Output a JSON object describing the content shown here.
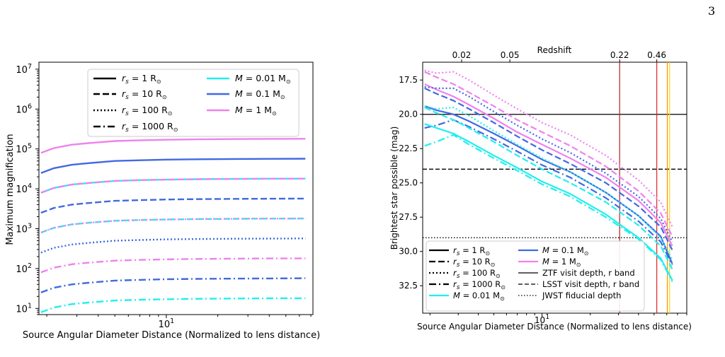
{
  "page": {
    "page_number": "3"
  },
  "chart_data": [
    {
      "type": "line",
      "xlabel": "Source Angular Diameter Distance (Normalized to lens distance)",
      "ylabel": "Maximum magnification",
      "xscale": "log",
      "yscale": "log",
      "xlim": [
        1.8,
        72
      ],
      "ylim": [
        7,
        15000000
      ],
      "x_tick_labels": [
        {
          "value": 10,
          "base": "10",
          "exp": "1"
        }
      ],
      "y_tick_labels": [
        {
          "value": 10,
          "base": "10",
          "exp": "1"
        },
        {
          "value": 100,
          "base": "10",
          "exp": "2"
        },
        {
          "value": 1000,
          "base": "10",
          "exp": "3"
        },
        {
          "value": 10000,
          "base": "10",
          "exp": "4"
        },
        {
          "value": 100000,
          "base": "10",
          "exp": "5"
        },
        {
          "value": 1000000,
          "base": "10",
          "exp": "6"
        },
        {
          "value": 10000000,
          "base": "10",
          "exp": "7"
        }
      ],
      "grid": false,
      "legend_position": "top-center",
      "legend": [
        {
          "main": "r",
          "sub": "s",
          "rest": " = 1 R",
          "suffix": "⊙",
          "style": "solid",
          "color": "#000000"
        },
        {
          "main": "r",
          "sub": "s",
          "rest": " = 10 R",
          "suffix": "⊙",
          "style": "dashed",
          "color": "#000000"
        },
        {
          "main": "r",
          "sub": "s",
          "rest": " = 100 R",
          "suffix": "⊙",
          "style": "dotted",
          "color": "#000000"
        },
        {
          "main": "r",
          "sub": "s",
          "rest": " = 1000 R",
          "suffix": "⊙",
          "style": "dashdot",
          "color": "#000000"
        },
        {
          "main": "M",
          "sub": "",
          "rest": " = 0.01 M",
          "suffix": "⊙",
          "style": "solid",
          "color": "#22eeee"
        },
        {
          "main": "M",
          "sub": "",
          "rest": " = 0.1 M",
          "suffix": "⊙",
          "style": "solid",
          "color": "#4169e1"
        },
        {
          "main": "M",
          "sub": "",
          "rest": " = 1 M",
          "suffix": "⊙",
          "style": "solid",
          "color": "#ee82ee"
        }
      ],
      "x": [
        1.85,
        2.2,
        2.8,
        3.5,
        5,
        7,
        10,
        15,
        25,
        40,
        65
      ],
      "series": [
        {
          "mass": "1",
          "rs": "1",
          "style": "solid",
          "color": "#ee82ee",
          "values": [
            80000,
            105000,
            128000,
            140000,
            158000,
            165000,
            170000,
            174000,
            177000,
            179000,
            180000
          ]
        },
        {
          "mass": "0.1",
          "rs": "1",
          "style": "solid",
          "color": "#4169e1",
          "values": [
            25000,
            33000,
            40000,
            44000,
            50000,
            52000,
            54000,
            55000,
            56000,
            56500,
            57000
          ]
        },
        {
          "mass": "0.01",
          "rs": "1",
          "style": "solid",
          "color": "#22eeee",
          "values": [
            8000,
            10500,
            12800,
            14000,
            15800,
            16500,
            17000,
            17400,
            17700,
            17900,
            18000
          ]
        },
        {
          "mass": "1",
          "rs": "10",
          "style": "dashed",
          "color": "#ee82ee",
          "values": [
            8000,
            10500,
            12800,
            14000,
            15800,
            16500,
            17000,
            17400,
            17700,
            17900,
            18000
          ]
        },
        {
          "mass": "0.1",
          "rs": "10",
          "style": "dashed",
          "color": "#4169e1",
          "values": [
            2500,
            3300,
            4000,
            4400,
            5000,
            5200,
            5400,
            5500,
            5600,
            5650,
            5700
          ]
        },
        {
          "mass": "0.01",
          "rs": "10",
          "style": "dashed",
          "color": "#22eeee",
          "values": [
            800,
            1050,
            1280,
            1400,
            1580,
            1650,
            1700,
            1740,
            1770,
            1790,
            1800
          ]
        },
        {
          "mass": "1",
          "rs": "100",
          "style": "dotted",
          "color": "#ee82ee",
          "values": [
            800,
            1050,
            1280,
            1400,
            1580,
            1650,
            1700,
            1740,
            1770,
            1790,
            1800
          ]
        },
        {
          "mass": "0.1",
          "rs": "100",
          "style": "dotted",
          "color": "#4169e1",
          "values": [
            250,
            330,
            400,
            440,
            500,
            520,
            540,
            550,
            560,
            565,
            570
          ]
        },
        {
          "mass": "1",
          "rs": "1000",
          "style": "dashdot",
          "color": "#ee82ee",
          "values": [
            80,
            105,
            128,
            140,
            158,
            165,
            170,
            174,
            177,
            179,
            180
          ]
        },
        {
          "mass": "0.1",
          "rs": "1000",
          "style": "dashdot",
          "color": "#4169e1",
          "values": [
            25,
            33,
            40,
            44,
            50,
            52,
            54,
            55,
            56,
            56.5,
            57
          ]
        },
        {
          "mass": "0.01",
          "rs": "1000",
          "style": "dashdot",
          "color": "#22eeee",
          "values": [
            8,
            10.5,
            12.8,
            14,
            15.8,
            16.5,
            17,
            17.4,
            17.7,
            17.9,
            18
          ]
        }
      ]
    },
    {
      "type": "line",
      "xlabel": "Source Angular Diameter Distance (Normalized to lens distance)",
      "ylabel": "Brightest star possible (mag)",
      "top_xlabel": "Redshift",
      "xscale": "log",
      "y_inverted": true,
      "xlim": [
        1.8,
        80
      ],
      "ylim": [
        34.5,
        16.2
      ],
      "x_tick_labels": [
        {
          "value": 10,
          "base": "10",
          "exp": "1"
        }
      ],
      "y_tick_labels": [
        {
          "value": 17.5,
          "text": "17.5"
        },
        {
          "value": 20.0,
          "text": "20.0"
        },
        {
          "value": 22.5,
          "text": "22.5"
        },
        {
          "value": 25.0,
          "text": "25.0"
        },
        {
          "value": 27.5,
          "text": "27.5"
        },
        {
          "value": 30.0,
          "text": "30.0"
        },
        {
          "value": 32.5,
          "text": "32.5"
        }
      ],
      "top_ticks": [
        {
          "text": "0.02",
          "x": 3.15
        },
        {
          "text": "0.05",
          "x": 6.3
        },
        {
          "text": "0.22",
          "x": 30.5
        },
        {
          "text": "0.46",
          "x": 52
        }
      ],
      "vertical_lines": [
        {
          "x": 30.5,
          "color": "#b22222"
        },
        {
          "x": 52,
          "color": "#dd2222"
        },
        {
          "x": 60.5,
          "color": "#ff8c00"
        },
        {
          "x": 62.5,
          "color": "#ffd700"
        }
      ],
      "reference_lines": [
        {
          "y": 20.0,
          "style": "solid",
          "label": "ZTF visit depth, r band"
        },
        {
          "y": 24.0,
          "style": "dashed",
          "label": "LSST visit depth, r band"
        },
        {
          "y": 29.0,
          "style": "dotted",
          "label": "JWST fiducial depth"
        }
      ],
      "grid": false,
      "legend_position": "bottom-left",
      "legend": [
        {
          "main": "r",
          "sub": "s",
          "rest": " = 1 R",
          "suffix": "⊙",
          "style": "solid",
          "color": "#000000",
          "thick": true
        },
        {
          "main": "r",
          "sub": "s",
          "rest": " = 10 R",
          "suffix": "⊙",
          "style": "dashed",
          "color": "#000000",
          "thick": true
        },
        {
          "main": "r",
          "sub": "s",
          "rest": " = 100 R",
          "suffix": "⊙",
          "style": "dotted",
          "color": "#000000",
          "thick": true
        },
        {
          "main": "r",
          "sub": "s",
          "rest": " = 1000 R",
          "suffix": "⊙",
          "style": "dashdot",
          "color": "#000000",
          "thick": true
        },
        {
          "main": "M",
          "sub": "",
          "rest": " = 0.01 M",
          "suffix": "⊙",
          "style": "solid",
          "color": "#22eeee",
          "thick": true
        },
        {
          "main": "M",
          "sub": "",
          "rest": " = 0.1 M",
          "suffix": "⊙",
          "style": "solid",
          "color": "#4169e1",
          "thick": true
        },
        {
          "main": "M",
          "sub": "",
          "rest": " = 1 M",
          "suffix": "⊙",
          "style": "solid",
          "color": "#ee82ee",
          "thick": true
        },
        {
          "text": "ZTF visit depth, r band",
          "style": "solid",
          "color": "#000000",
          "thick": false
        },
        {
          "text": "LSST visit depth, r band",
          "style": "dashed",
          "color": "#000000",
          "thick": false
        },
        {
          "text": "JWST fiducial depth",
          "style": "dotted",
          "color": "#000000",
          "thick": false
        }
      ],
      "x": [
        1.85,
        2.2,
        2.8,
        3.5,
        5,
        7,
        10,
        15,
        25,
        40,
        55,
        65
      ],
      "series": [
        {
          "mass": "1",
          "rs": "100",
          "style": "dotted",
          "color": "#ee82ee",
          "values": [
            16.8,
            17.0,
            16.9,
            17.5,
            18.6,
            19.6,
            20.6,
            21.5,
            23.0,
            24.8,
            26.4,
            28.2
          ]
        },
        {
          "mass": "1",
          "rs": "10",
          "style": "dashed",
          "color": "#ee82ee",
          "values": [
            16.9,
            17.3,
            17.8,
            18.4,
            19.4,
            20.4,
            21.3,
            22.3,
            23.8,
            25.6,
            27.2,
            28.9
          ]
        },
        {
          "mass": "1",
          "rs": "1",
          "style": "solid",
          "color": "#ee82ee",
          "values": [
            17.8,
            18.2,
            18.7,
            19.3,
            20.3,
            21.3,
            22.2,
            23.2,
            24.6,
            26.3,
            27.9,
            29.6
          ]
        },
        {
          "mass": "0.1",
          "rs": "100",
          "style": "dotted",
          "color": "#4169e1",
          "values": [
            18.0,
            18.1,
            18.1,
            18.7,
            19.8,
            20.8,
            21.8,
            22.8,
            24.3,
            26.0,
            27.6,
            29.3
          ]
        },
        {
          "mass": "0.1",
          "rs": "10",
          "style": "dashed",
          "color": "#4169e1",
          "values": [
            18.1,
            18.5,
            19.0,
            19.6,
            20.6,
            21.6,
            22.6,
            23.6,
            25.0,
            26.7,
            28.2,
            29.9
          ]
        },
        {
          "mass": "0.1",
          "rs": "1",
          "style": "solid",
          "color": "#4169e1",
          "values": [
            19.4,
            19.7,
            20.0,
            20.5,
            21.4,
            22.3,
            23.3,
            24.2,
            25.7,
            27.4,
            28.9,
            30.9
          ]
        },
        {
          "mass": "0.1",
          "rs": "1000",
          "style": "dashdot",
          "color": "#4169e1",
          "values": [
            21.0,
            20.8,
            20.4,
            20.9,
            21.8,
            22.7,
            23.7,
            24.6,
            26.1,
            27.8,
            29.3,
            31.0
          ]
        },
        {
          "mass": "0.01",
          "rs": "100",
          "style": "dotted",
          "color": "#22eeee",
          "values": [
            19.4,
            19.6,
            19.5,
            20.1,
            21.2,
            22.2,
            23.2,
            24.2,
            25.7,
            27.4,
            29.0,
            30.6
          ]
        },
        {
          "mass": "0.01",
          "rs": "10",
          "style": "dashed",
          "color": "#22eeee",
          "values": [
            19.5,
            19.9,
            20.4,
            21.0,
            22.0,
            23.0,
            24.0,
            25.0,
            26.4,
            28.1,
            29.6,
            31.3
          ]
        },
        {
          "mass": "0.01",
          "rs": "1",
          "style": "solid",
          "color": "#22eeee",
          "values": [
            20.7,
            21.0,
            21.4,
            22.0,
            23.0,
            23.9,
            24.9,
            25.8,
            27.3,
            29.0,
            30.5,
            32.1
          ]
        },
        {
          "mass": "0.01",
          "rs": "1000",
          "style": "dashdot",
          "color": "#22eeee",
          "values": [
            22.3,
            22.0,
            21.5,
            22.2,
            23.2,
            24.1,
            25.1,
            26.0,
            27.5,
            29.1,
            30.6,
            32.2
          ]
        }
      ]
    }
  ]
}
